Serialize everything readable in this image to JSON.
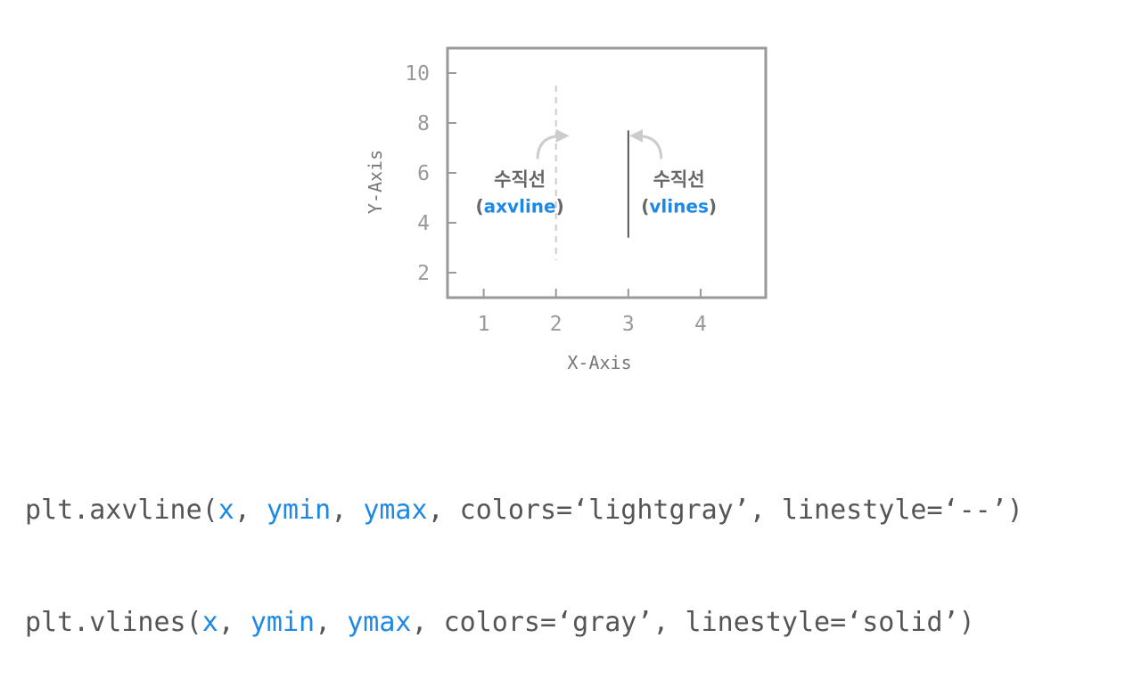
{
  "chart_data": {
    "type": "line",
    "xlabel": "X-Axis",
    "ylabel": "Y-Axis",
    "xlim": [
      0.5,
      4.9
    ],
    "ylim": [
      1,
      11
    ],
    "x_ticks": [
      1,
      2,
      3,
      4
    ],
    "y_ticks": [
      2,
      4,
      6,
      8,
      10
    ],
    "grid": false,
    "lines": [
      {
        "function": "axvline",
        "x": 2,
        "ymin_data": 2.5,
        "ymax_data": 9.5,
        "color": "lightgray",
        "linestyle": "--"
      },
      {
        "function": "vlines",
        "x": 3,
        "ymin_data": 3.4,
        "ymax_data": 7.7,
        "color": "gray",
        "linestyle": "solid"
      }
    ],
    "annotations": [
      {
        "label": "수직선",
        "sub_open": "(",
        "sub_keyword": "axvline",
        "sub_close": ")",
        "x": 1.5,
        "y": 5.2
      },
      {
        "label": "수직선",
        "sub_open": "(",
        "sub_keyword": "vlines",
        "sub_close": ")",
        "x": 3.7,
        "y": 5.2
      }
    ]
  },
  "colors": {
    "axes_frame": "#999999",
    "axvline": "#cccccc",
    "vlines": "#555555",
    "keyword_blue": "#1e88e5",
    "code_text": "#555555"
  },
  "code": {
    "line1": {
      "prefix": "plt.axvline(",
      "x": "x",
      "sep1": ", ",
      "ymin": "ymin",
      "sep2": ", ",
      "ymax": "ymax",
      "suffix": ", colors=‘lightgray’, linestyle=‘--’)"
    },
    "line2": {
      "prefix": "plt.vlines(",
      "x": "x",
      "sep1": ", ",
      "ymin": "ymin",
      "sep2": ", ",
      "ymax": "ymax",
      "suffix": ", colors=‘gray’, linestyle=‘solid’)"
    }
  }
}
